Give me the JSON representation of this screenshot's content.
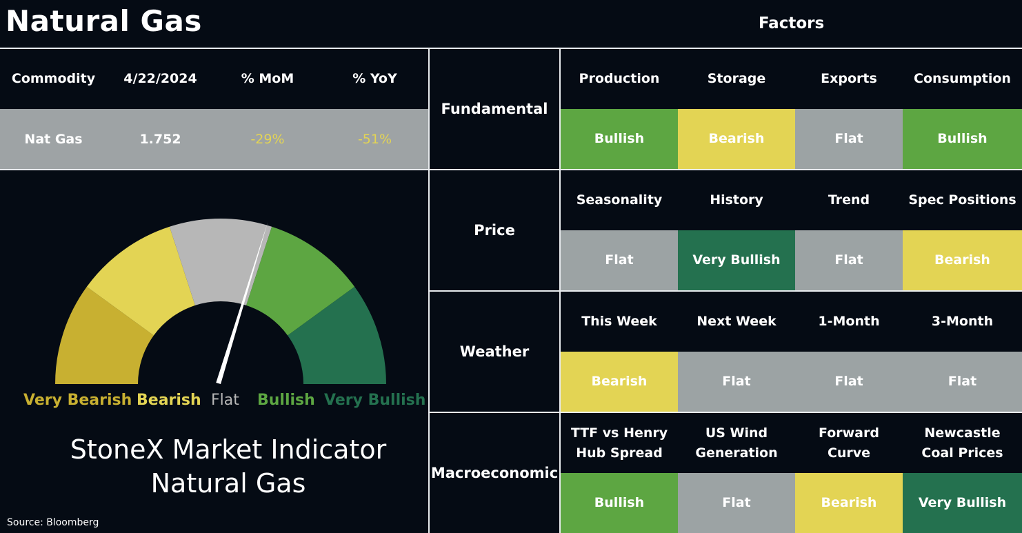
{
  "header": {
    "title": "Natural Gas",
    "factors_title": "Factors"
  },
  "commodity_table": {
    "headers": [
      "Commodity",
      "4/22/2024",
      "% MoM",
      "% YoY"
    ],
    "row": [
      "Nat Gas",
      "1.752",
      "-29%",
      "-51%"
    ]
  },
  "gauge": {
    "labels": [
      "Very Bearish",
      "Bearish",
      "Flat",
      "Bullish",
      "Very Bullish"
    ],
    "label_colors": [
      "#c8b031",
      "#e3d454",
      "#b7b7b7",
      "#5da642",
      "#24714f"
    ],
    "segment_colors": [
      "#c8b031",
      "#e3d454",
      "#b7b7b7",
      "#5da642",
      "#24714f"
    ],
    "needle_value": 0.59,
    "caption_line1": "StoneX Market Indicator",
    "caption_line2": "Natural Gas"
  },
  "source": "Source: Bloomberg",
  "colors": {
    "very_bullish": "#24714f",
    "bullish": "#5da642",
    "flat": "#9ca3a4",
    "bearish": "#e3d454",
    "flat_row": "#9ea3a5",
    "negative_text": "#e3d454"
  },
  "factor_groups": [
    {
      "name": "Fundamental",
      "factors": [
        "Production",
        "Storage",
        "Exports",
        "Consumption"
      ],
      "signals": [
        "Bullish",
        "Bearish",
        "Flat",
        "Bullish"
      ]
    },
    {
      "name": "Price",
      "factors": [
        "Seasonality",
        "History",
        "Trend",
        "Spec Positions"
      ],
      "signals": [
        "Flat",
        "Very Bullish",
        "Flat",
        "Bearish"
      ]
    },
    {
      "name": "Weather",
      "factors": [
        "This Week",
        "Next Week",
        "1-Month",
        "3-Month"
      ],
      "signals": [
        "Bearish",
        "Flat",
        "Flat",
        "Flat"
      ]
    },
    {
      "name": "Macroeconomic",
      "factors": [
        "TTF vs Henry Hub Spread",
        "US Wind Generation",
        "Forward Curve",
        "Newcastle Coal Prices"
      ],
      "signals": [
        "Bullish",
        "Flat",
        "Bearish",
        "Very Bullish"
      ]
    }
  ]
}
